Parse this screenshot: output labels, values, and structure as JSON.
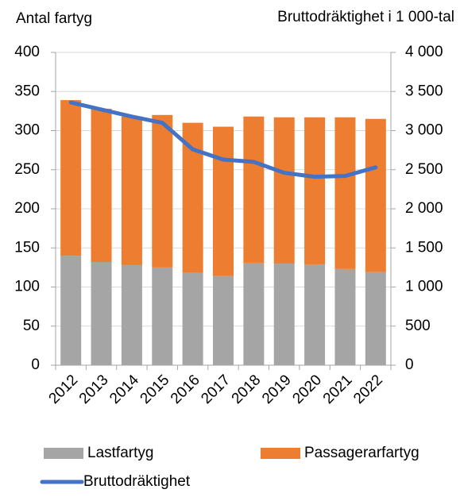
{
  "chart_data": {
    "type": "bar",
    "y_label": "Antal fartyg",
    "y2_label": "Bruttodräktighet i 1 000-tal",
    "categories": [
      "2012",
      "2013",
      "2014",
      "2015",
      "2016",
      "2017",
      "2018",
      "2019",
      "2020",
      "2021",
      "2022"
    ],
    "series": [
      {
        "name": "Lastfartyg",
        "color": "#a5a5a5",
        "type": "bar",
        "values": [
          140,
          132,
          128,
          125,
          118,
          114,
          131,
          130,
          129,
          123,
          119
        ]
      },
      {
        "name": "Passagerarfartyg",
        "color": "#ed7d31",
        "type": "bar",
        "values": [
          199,
          196,
          190,
          195,
          192,
          191,
          187,
          187,
          188,
          194,
          196
        ]
      },
      {
        "name": "Bruttodräktighet",
        "color": "#4472c4",
        "type": "line",
        "axis": "y2",
        "values": [
          3360,
          3270,
          3180,
          3100,
          2760,
          2630,
          2600,
          2460,
          2410,
          2420,
          2530
        ]
      }
    ],
    "stacked": true,
    "ylim": [
      0,
      400
    ],
    "yticks": [
      0,
      50,
      100,
      150,
      200,
      250,
      300,
      350,
      400
    ],
    "y2lim": [
      0,
      4000
    ],
    "y2ticks": [
      0,
      500,
      {
        "value": 1000,
        "label": "1 000"
      },
      {
        "value": 1500,
        "label": "1 500"
      },
      {
        "value": 2000,
        "label": "2 000"
      },
      {
        "value": 2500,
        "label": "2 500"
      },
      {
        "value": 3000,
        "label": "3 000"
      },
      {
        "value": 3500,
        "label": "3 500"
      },
      {
        "value": 4000,
        "label": "4 000"
      }
    ],
    "grid": true,
    "legend": "bottom"
  }
}
